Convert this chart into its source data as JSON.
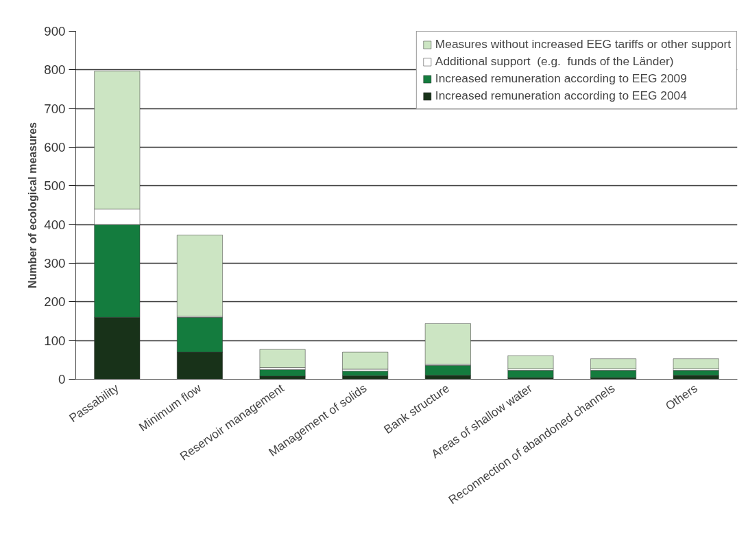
{
  "chart_data": {
    "type": "bar",
    "stacked": true,
    "ylabel": "Number of ecological measures",
    "categories": [
      "Passability",
      "Minimum flow",
      "Reservoir management",
      "Management of solids",
      "Bank structure",
      "Areas of shallow water",
      "Reconnection of abandoned channels",
      "Others"
    ],
    "series": [
      {
        "name": "Increased remuneration according to EEG 2004",
        "color": "#183219",
        "values": [
          160,
          70,
          8,
          9,
          10,
          4,
          4,
          10
        ]
      },
      {
        "name": "Increased remuneration according to EEG 2009",
        "color": "#147c3e",
        "values": [
          240,
          90,
          17,
          12,
          26,
          19,
          19,
          13
        ]
      },
      {
        "name": "Additional support  (e.g.  funds of the Länder)",
        "color": "#ffffff",
        "values": [
          40,
          3,
          5,
          5,
          3,
          4,
          4,
          4
        ]
      },
      {
        "name": "Measures without increased EEG tariffs or other support",
        "color": "#cce5c3",
        "values": [
          357,
          210,
          47,
          44,
          105,
          34,
          26,
          26
        ]
      }
    ],
    "ylim": [
      0,
      900
    ],
    "yticks": [
      0,
      100,
      200,
      300,
      400,
      500,
      600,
      700,
      800,
      900
    ],
    "grid": "y",
    "legend": "top right"
  }
}
